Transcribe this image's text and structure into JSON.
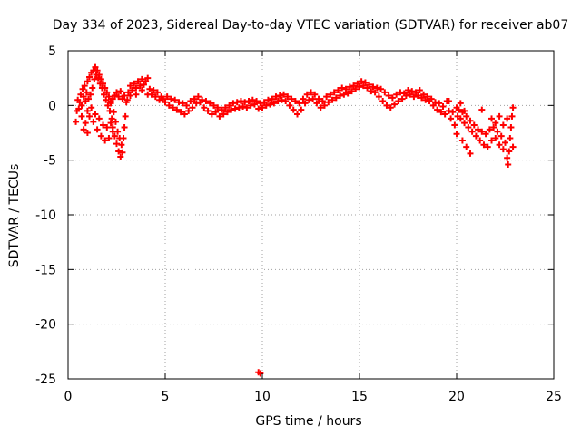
{
  "chart_data": {
    "type": "scatter",
    "title": "Day 334 of 2023, Sidereal Day-to-day VTEC variation (SDTVAR) for receiver ab07",
    "xlabel": "GPS time / hours",
    "ylabel": "SDTVAR / TECUs",
    "xlim": [
      0,
      25
    ],
    "ylim": [
      -25,
      5
    ],
    "xticks": [
      0,
      5,
      10,
      15,
      20,
      25
    ],
    "yticks": [
      5,
      0,
      -5,
      -10,
      -15,
      -20,
      -25
    ],
    "xtick_labels": [
      "0",
      "5",
      "10",
      "15",
      "20",
      "25"
    ],
    "ytick_labels": [
      "5",
      "0",
      "-5",
      "-10",
      "-15",
      "-20",
      "-25"
    ],
    "grid": true,
    "marker": "+",
    "series": [
      {
        "name": "SDTVAR",
        "color": "#ff0000",
        "points": [
          [
            0.4,
            -1.5
          ],
          [
            0.45,
            -0.5
          ],
          [
            0.5,
            0.5
          ],
          [
            0.55,
            -0.3
          ],
          [
            0.6,
            0.3
          ],
          [
            0.65,
            1.0
          ],
          [
            0.7,
            0.0
          ],
          [
            0.75,
            1.5
          ],
          [
            0.8,
            0.8
          ],
          [
            0.85,
            1.8
          ],
          [
            0.9,
            0.4
          ],
          [
            0.95,
            1.2
          ],
          [
            1.0,
            2.2
          ],
          [
            1.05,
            0.6
          ],
          [
            1.1,
            2.6
          ],
          [
            1.15,
            1.0
          ],
          [
            1.2,
            3.0
          ],
          [
            1.25,
            1.6
          ],
          [
            1.3,
            3.2
          ],
          [
            1.35,
            2.4
          ],
          [
            1.4,
            3.5
          ],
          [
            1.45,
            2.8
          ],
          [
            1.5,
            3.2
          ],
          [
            1.55,
            2.5
          ],
          [
            1.6,
            2.8
          ],
          [
            1.65,
            2.0
          ],
          [
            1.7,
            2.4
          ],
          [
            1.75,
            1.6
          ],
          [
            1.8,
            2.0
          ],
          [
            1.85,
            1.0
          ],
          [
            1.9,
            1.6
          ],
          [
            1.95,
            0.5
          ],
          [
            2.0,
            1.2
          ],
          [
            2.05,
            0.0
          ],
          [
            2.1,
            0.8
          ],
          [
            2.15,
            -0.5
          ],
          [
            2.2,
            0.4
          ],
          [
            2.25,
            -1.2
          ],
          [
            2.3,
            -2.0
          ],
          [
            2.35,
            -0.6
          ],
          [
            2.4,
            -2.8
          ],
          [
            2.45,
            -1.5
          ],
          [
            2.5,
            -3.5
          ],
          [
            2.55,
            -2.4
          ],
          [
            2.6,
            -4.2
          ],
          [
            2.65,
            -3.0
          ],
          [
            2.7,
            -4.7
          ],
          [
            2.75,
            -3.6
          ],
          [
            2.8,
            -4.3
          ],
          [
            2.85,
            -3.0
          ],
          [
            2.9,
            -2.0
          ],
          [
            2.95,
            -1.0
          ],
          [
            1.0,
            -0.5
          ],
          [
            1.1,
            -1.0
          ],
          [
            1.2,
            -0.2
          ],
          [
            1.3,
            -1.5
          ],
          [
            1.4,
            -0.8
          ],
          [
            1.5,
            -2.2
          ],
          [
            1.6,
            -1.2
          ],
          [
            1.7,
            -2.8
          ],
          [
            1.8,
            -1.8
          ],
          [
            1.9,
            -3.2
          ],
          [
            2.0,
            -2.0
          ],
          [
            2.1,
            -3.0
          ],
          [
            2.2,
            -1.6
          ],
          [
            2.3,
            -2.4
          ],
          [
            0.7,
            -1.0
          ],
          [
            0.8,
            -2.2
          ],
          [
            0.9,
            -1.6
          ],
          [
            1.0,
            -2.5
          ],
          [
            2.2,
            0.2
          ],
          [
            2.3,
            0.6
          ],
          [
            2.4,
            0.9
          ],
          [
            2.5,
            1.2
          ],
          [
            2.6,
            0.8
          ],
          [
            2.7,
            1.3
          ],
          [
            2.8,
            0.6
          ],
          [
            2.9,
            0.9
          ],
          [
            3.0,
            0.3
          ],
          [
            3.05,
            0.5
          ],
          [
            3.1,
            1.2
          ],
          [
            3.2,
            1.8
          ],
          [
            3.3,
            1.4
          ],
          [
            3.4,
            2.0
          ],
          [
            3.5,
            1.6
          ],
          [
            3.6,
            2.2
          ],
          [
            3.7,
            1.8
          ],
          [
            3.8,
            2.4
          ],
          [
            3.9,
            1.9
          ],
          [
            4.0,
            2.2
          ],
          [
            4.1,
            2.5
          ],
          [
            4.2,
            1.5
          ],
          [
            4.3,
            1.0
          ],
          [
            4.4,
            1.4
          ],
          [
            4.5,
            0.8
          ],
          [
            4.6,
            1.2
          ],
          [
            4.7,
            0.5
          ],
          [
            4.8,
            0.8
          ],
          [
            4.9,
            0.6
          ],
          [
            5.0,
            0.3
          ],
          [
            3.2,
            0.9
          ],
          [
            3.5,
            1.0
          ],
          [
            3.8,
            1.4
          ],
          [
            4.1,
            1.0
          ],
          [
            5.1,
            0.8
          ],
          [
            5.2,
            0.0
          ],
          [
            5.3,
            0.6
          ],
          [
            5.4,
            -0.2
          ],
          [
            5.5,
            0.5
          ],
          [
            5.6,
            -0.4
          ],
          [
            5.7,
            0.3
          ],
          [
            5.8,
            -0.6
          ],
          [
            5.9,
            0.2
          ],
          [
            6.0,
            -0.8
          ],
          [
            6.1,
            0.0
          ],
          [
            6.2,
            -0.5
          ],
          [
            6.3,
            0.4
          ],
          [
            6.4,
            -0.2
          ],
          [
            6.5,
            0.6
          ],
          [
            6.6,
            0.2
          ],
          [
            6.7,
            0.8
          ],
          [
            6.8,
            0.3
          ],
          [
            6.9,
            0.5
          ],
          [
            7.0,
            -0.2
          ],
          [
            7.1,
            0.4
          ],
          [
            7.2,
            -0.5
          ],
          [
            7.3,
            0.2
          ],
          [
            7.4,
            -0.8
          ],
          [
            7.5,
            0.0
          ],
          [
            7.6,
            -0.6
          ],
          [
            7.7,
            -0.2
          ],
          [
            7.8,
            -1.0
          ],
          [
            7.9,
            -0.4
          ],
          [
            8.0,
            -0.8
          ],
          [
            8.1,
            -0.2
          ],
          [
            8.2,
            -0.6
          ],
          [
            8.3,
            0.0
          ],
          [
            8.4,
            -0.4
          ],
          [
            8.5,
            0.2
          ],
          [
            8.6,
            -0.3
          ],
          [
            8.7,
            0.3
          ],
          [
            8.8,
            -0.2
          ],
          [
            8.9,
            0.4
          ],
          [
            9.0,
            -0.1
          ],
          [
            9.1,
            0.3
          ],
          [
            9.2,
            -0.2
          ],
          [
            9.3,
            0.4
          ],
          [
            9.4,
            0.0
          ],
          [
            9.5,
            0.5
          ],
          [
            9.6,
            0.1
          ],
          [
            9.7,
            0.4
          ],
          [
            9.8,
            -0.3
          ],
          [
            9.9,
            0.2
          ],
          [
            10.0,
            -0.2
          ],
          [
            10.1,
            0.3
          ],
          [
            10.2,
            0.0
          ],
          [
            10.3,
            0.5
          ],
          [
            10.4,
            0.1
          ],
          [
            10.5,
            0.6
          ],
          [
            10.6,
            0.2
          ],
          [
            10.7,
            0.8
          ],
          [
            10.8,
            0.4
          ],
          [
            10.9,
            0.9
          ],
          [
            11.0,
            0.5
          ],
          [
            11.1,
            1.0
          ],
          [
            11.2,
            0.4
          ],
          [
            11.3,
            0.8
          ],
          [
            11.4,
            0.0
          ],
          [
            11.5,
            0.6
          ],
          [
            11.6,
            -0.4
          ],
          [
            11.7,
            0.4
          ],
          [
            11.8,
            -0.8
          ],
          [
            11.9,
            0.2
          ],
          [
            12.0,
            -0.4
          ],
          [
            12.1,
            0.6
          ],
          [
            12.2,
            0.2
          ],
          [
            12.3,
            1.0
          ],
          [
            12.4,
            0.5
          ],
          [
            12.5,
            1.2
          ],
          [
            12.6,
            0.6
          ],
          [
            12.7,
            1.0
          ],
          [
            12.8,
            0.2
          ],
          [
            12.9,
            0.6
          ],
          [
            13.0,
            -0.2
          ],
          [
            13.1,
            0.4
          ],
          [
            13.2,
            0.0
          ],
          [
            13.3,
            0.8
          ],
          [
            13.4,
            0.3
          ],
          [
            13.5,
            1.0
          ],
          [
            13.6,
            0.5
          ],
          [
            13.7,
            1.2
          ],
          [
            13.8,
            0.7
          ],
          [
            13.9,
            1.4
          ],
          [
            14.0,
            0.9
          ],
          [
            14.1,
            1.6
          ],
          [
            14.2,
            1.0
          ],
          [
            14.3,
            1.5
          ],
          [
            14.4,
            1.1
          ],
          [
            14.5,
            1.7
          ],
          [
            14.6,
            1.3
          ],
          [
            14.7,
            1.8
          ],
          [
            14.8,
            1.5
          ],
          [
            14.9,
            2.0
          ],
          [
            15.0,
            1.7
          ],
          [
            15.1,
            2.2
          ],
          [
            15.2,
            1.8
          ],
          [
            15.3,
            2.1
          ],
          [
            15.4,
            1.6
          ],
          [
            15.5,
            1.9
          ],
          [
            15.6,
            1.3
          ],
          [
            15.7,
            1.7
          ],
          [
            15.8,
            1.2
          ],
          [
            15.9,
            1.6
          ],
          [
            16.0,
            0.8
          ],
          [
            16.1,
            1.5
          ],
          [
            16.2,
            0.4
          ],
          [
            16.3,
            1.2
          ],
          [
            16.4,
            0.0
          ],
          [
            16.5,
            0.9
          ],
          [
            16.6,
            -0.2
          ],
          [
            16.7,
            0.7
          ],
          [
            16.8,
            0.1
          ],
          [
            16.9,
            1.0
          ],
          [
            17.0,
            0.4
          ],
          [
            17.1,
            1.2
          ],
          [
            17.2,
            0.6
          ],
          [
            17.3,
            1.1
          ],
          [
            17.4,
            0.9
          ],
          [
            17.5,
            1.4
          ],
          [
            17.6,
            1.0
          ],
          [
            17.7,
            1.3
          ],
          [
            17.8,
            0.8
          ],
          [
            17.9,
            1.2
          ],
          [
            18.0,
            0.9
          ],
          [
            18.1,
            1.4
          ],
          [
            18.2,
            0.7
          ],
          [
            18.3,
            1.0
          ],
          [
            18.4,
            0.5
          ],
          [
            18.5,
            0.8
          ],
          [
            18.6,
            0.4
          ],
          [
            18.7,
            0.6
          ],
          [
            18.8,
            0.0
          ],
          [
            18.9,
            0.3
          ],
          [
            19.0,
            -0.4
          ],
          [
            19.1,
            0.2
          ],
          [
            19.2,
            -0.6
          ],
          [
            19.3,
            -0.1
          ],
          [
            19.4,
            -0.8
          ],
          [
            19.5,
            0.4
          ],
          [
            19.6,
            -0.5
          ],
          [
            19.7,
            -1.2
          ],
          [
            19.8,
            -0.6
          ],
          [
            19.9,
            -1.8
          ],
          [
            20.0,
            -2.6
          ],
          [
            20.05,
            -1.0
          ],
          [
            20.1,
            -0.4
          ],
          [
            20.2,
            -1.2
          ],
          [
            20.3,
            -0.6
          ],
          [
            20.4,
            -1.6
          ],
          [
            20.5,
            -1.0
          ],
          [
            20.6,
            -2.0
          ],
          [
            20.7,
            -1.4
          ],
          [
            20.8,
            -2.4
          ],
          [
            20.9,
            -1.8
          ],
          [
            21.0,
            -2.8
          ],
          [
            21.1,
            -2.2
          ],
          [
            21.2,
            -3.2
          ],
          [
            21.3,
            -2.4
          ],
          [
            21.4,
            -3.6
          ],
          [
            21.5,
            -2.6
          ],
          [
            21.6,
            -3.8
          ],
          [
            21.7,
            -2.2
          ],
          [
            21.8,
            -3.2
          ],
          [
            21.9,
            -2.0
          ],
          [
            22.0,
            -3.0
          ],
          [
            22.1,
            -2.4
          ],
          [
            22.2,
            -3.6
          ],
          [
            22.3,
            -2.8
          ],
          [
            22.4,
            -4.0
          ],
          [
            22.5,
            -3.4
          ],
          [
            22.6,
            -4.8
          ],
          [
            22.65,
            -5.4
          ],
          [
            22.7,
            -4.2
          ],
          [
            22.75,
            -3.0
          ],
          [
            22.8,
            -2.0
          ],
          [
            22.85,
            -1.0
          ],
          [
            22.9,
            -3.8
          ],
          [
            22.9,
            -0.2
          ],
          [
            20.0,
            -0.2
          ],
          [
            20.2,
            0.2
          ],
          [
            19.6,
            0.4
          ],
          [
            20.4,
            -0.5
          ],
          [
            20.3,
            -3.2
          ],
          [
            20.5,
            -3.8
          ],
          [
            20.7,
            -4.4
          ],
          [
            21.8,
            -1.2
          ],
          [
            22.0,
            -1.6
          ],
          [
            22.2,
            -1.0
          ],
          [
            22.4,
            -1.8
          ],
          [
            22.6,
            -1.2
          ],
          [
            21.3,
            -0.4
          ],
          [
            9.8,
            -24.4
          ],
          [
            9.9,
            -24.5
          ]
        ]
      }
    ]
  }
}
